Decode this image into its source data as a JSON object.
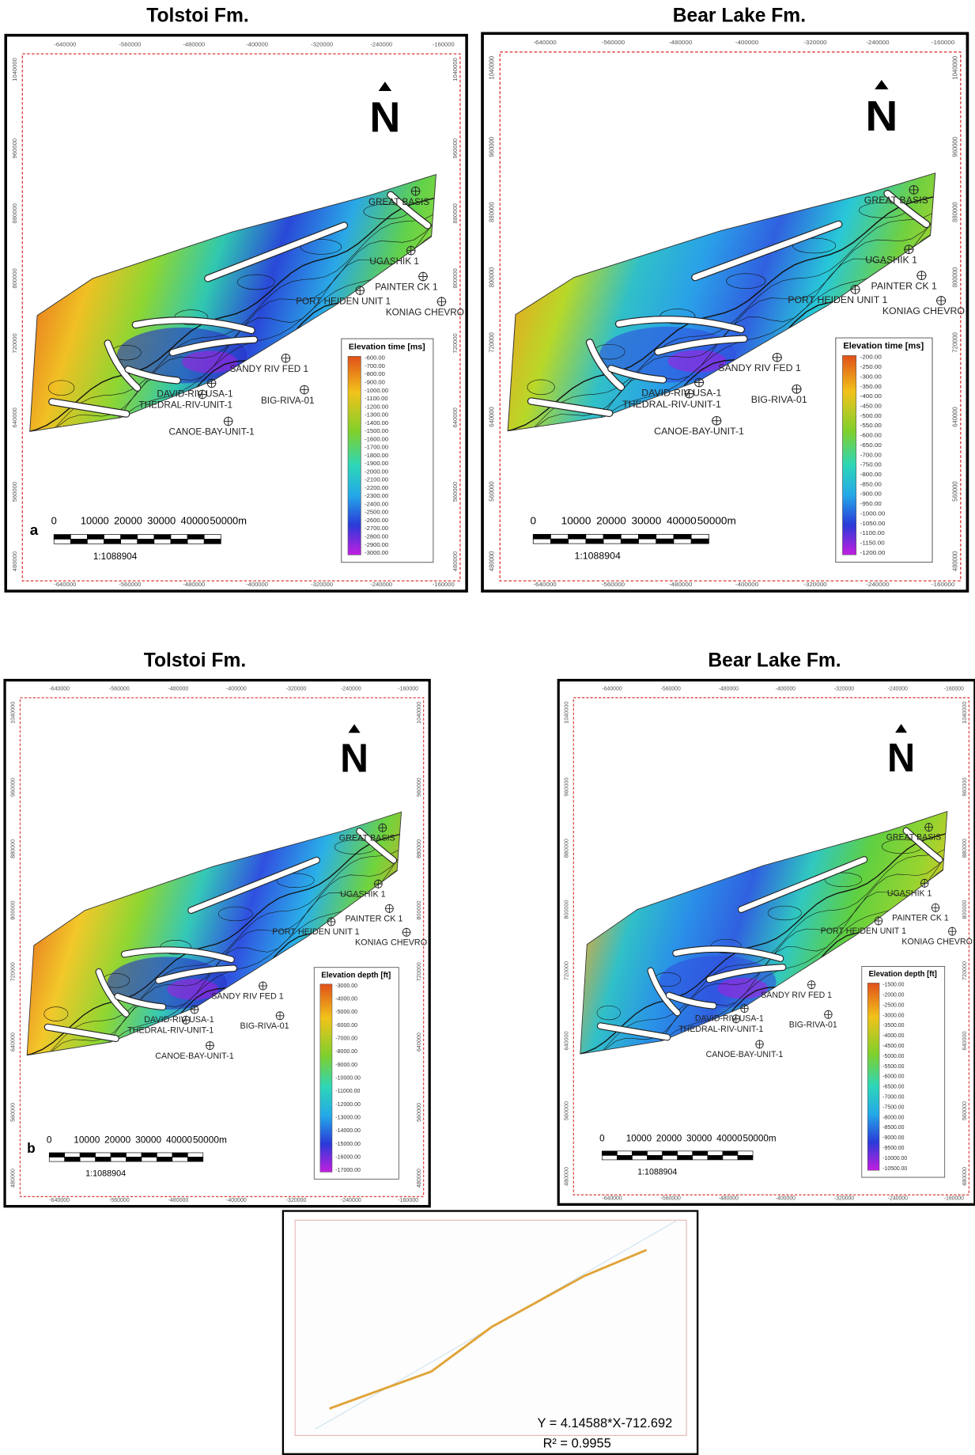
{
  "panels": [
    {
      "title": "Tolstoi Fm.",
      "letter": "a",
      "north": "N",
      "x_ticks": [
        "-640000",
        "-560000",
        "-480000",
        "-400000",
        "-320000",
        "-240000",
        "-160000"
      ],
      "y_ticks": [
        "1040000",
        "960000",
        "880000",
        "800000",
        "720000",
        "640000",
        "560000",
        "480000"
      ],
      "legend_title": "Elevation time [ms]",
      "legend_labels": [
        "-600.00",
        "-700.00",
        "-800.00",
        "-900.00",
        "-1000.00",
        "-1100.00",
        "-1200.00",
        "-1300.00",
        "-1400.00",
        "-1500.00",
        "-1600.00",
        "-1700.00",
        "-1800.00",
        "-1900.00",
        "-2000.00",
        "-2100.00",
        "-2200.00",
        "-2300.00",
        "-2400.00",
        "-2500.00",
        "-2600.00",
        "-2700.00",
        "-2800.00",
        "-2900.00",
        "-3000.00"
      ],
      "wells": [
        "GREAT BASIS",
        "UGASHIK 1",
        "PAINTER CK 1",
        "PORT HEIDEN UNIT 1",
        "KONIAG CHEVRO",
        "SANDY RIV FED 1",
        "BIG-RIVA-01",
        "DAVID-RIV-USA-1",
        "THEDRAL-RIV-UNIT-1",
        "CANOE-BAY-UNIT-1"
      ],
      "scale_labels": [
        "0",
        "10000",
        "20000",
        "30000",
        "40000",
        "50000m"
      ],
      "scale_ratio": "1:1088904"
    },
    {
      "title": "Bear Lake Fm.",
      "north": "N",
      "x_ticks": [
        "-640000",
        "-560000",
        "-480000",
        "-400000",
        "-320000",
        "-240000",
        "-160000"
      ],
      "y_ticks": [
        "1040000",
        "960000",
        "880000",
        "800000",
        "720000",
        "640000",
        "560000",
        "480000"
      ],
      "legend_title": "Elevation time [ms]",
      "legend_labels": [
        "-200.00",
        "-250.00",
        "-300.00",
        "-350.00",
        "-400.00",
        "-450.00",
        "-500.00",
        "-550.00",
        "-600.00",
        "-650.00",
        "-700.00",
        "-750.00",
        "-800.00",
        "-850.00",
        "-900.00",
        "-950.00",
        "-1000.00",
        "-1050.00",
        "-1100.00",
        "-1150.00",
        "-1200.00"
      ],
      "wells": [
        "GREAT BASIS",
        "UGASHIK 1",
        "PAINTER CK 1",
        "PORT HEIDEN UNIT 1",
        "KONIAG CHEVRO",
        "SANDY RIV FED 1",
        "BIG-RIVA-01",
        "DAVID-RIV-USA-1",
        "THEDRAL-RIV-UNIT-1",
        "CANOE-BAY-UNIT-1"
      ],
      "scale_labels": [
        "0",
        "10000",
        "20000",
        "30000",
        "40000",
        "50000m"
      ],
      "scale_ratio": "1:1088904"
    },
    {
      "title": "Tolstoi Fm.",
      "letter": "b",
      "north": "N",
      "x_ticks": [
        "-640000",
        "-560000",
        "-480000",
        "-400000",
        "-320000",
        "-240000",
        "-160000"
      ],
      "y_ticks": [
        "1040000",
        "960000",
        "880000",
        "800000",
        "720000",
        "640000",
        "560000",
        "480000"
      ],
      "legend_title": "Elevation depth [ft]",
      "legend_labels": [
        "-3000.00",
        "-4000.00",
        "-5000.00",
        "-6000.00",
        "-7000.00",
        "-8000.00",
        "-9000.00",
        "-10000.00",
        "-11000.00",
        "-12000.00",
        "-13000.00",
        "-14000.00",
        "-15000.00",
        "-16000.00",
        "-17000.00"
      ],
      "wells": [
        "GREAT BASIS",
        "UGASHIK 1",
        "PAINTER CK 1",
        "PORT HEIDEN UNIT 1",
        "KONIAG CHEVRO",
        "SANDY RIV FED 1",
        "BIG-RIVA-01",
        "DAVID-RIV-USA-1",
        "THEDRAL-RIV-UNIT-1",
        "CANOE-BAY-UNIT-1"
      ],
      "scale_labels": [
        "0",
        "10000",
        "20000",
        "30000",
        "40000",
        "50000m"
      ],
      "scale_ratio": "1:1088904"
    },
    {
      "title": "Bear Lake Fm.",
      "north": "N",
      "x_ticks": [
        "-640000",
        "-560000",
        "-480000",
        "-400000",
        "-320000",
        "-240000",
        "-160000"
      ],
      "y_ticks": [
        "1040000",
        "960000",
        "880000",
        "800000",
        "720000",
        "640000",
        "560000",
        "480000"
      ],
      "legend_title": "Elevation depth [ft]",
      "legend_labels": [
        "-1500.00",
        "-2000.00",
        "-2500.00",
        "-3000.00",
        "-3500.00",
        "-4000.00",
        "-4500.00",
        "-5000.00",
        "-5500.00",
        "-6000.00",
        "-6500.00",
        "-7000.00",
        "-7500.00",
        "-8000.00",
        "-8500.00",
        "-9000.00",
        "-9500.00",
        "-10000.00",
        "-10500.00"
      ],
      "wells": [
        "GREAT BASIS",
        "UGASHIK 1",
        "PAINTER CK 1",
        "PORT HEIDEN UNIT 1",
        "KONIAG CHEVRO",
        "SANDY RIV FED 1",
        "BIG-RIVA-01",
        "DAVID-RIV-USA-1",
        "THEDRAL-RIV-UNIT-1",
        "CANOE-BAY-UNIT-1"
      ],
      "scale_labels": [
        "0",
        "10000",
        "20000",
        "30000",
        "40000",
        "50000m"
      ],
      "scale_ratio": "1:1088904"
    }
  ],
  "regression": {
    "equation": "Y = 4.14588*X-712.692",
    "r_squared": "R² = 0.9955"
  }
}
